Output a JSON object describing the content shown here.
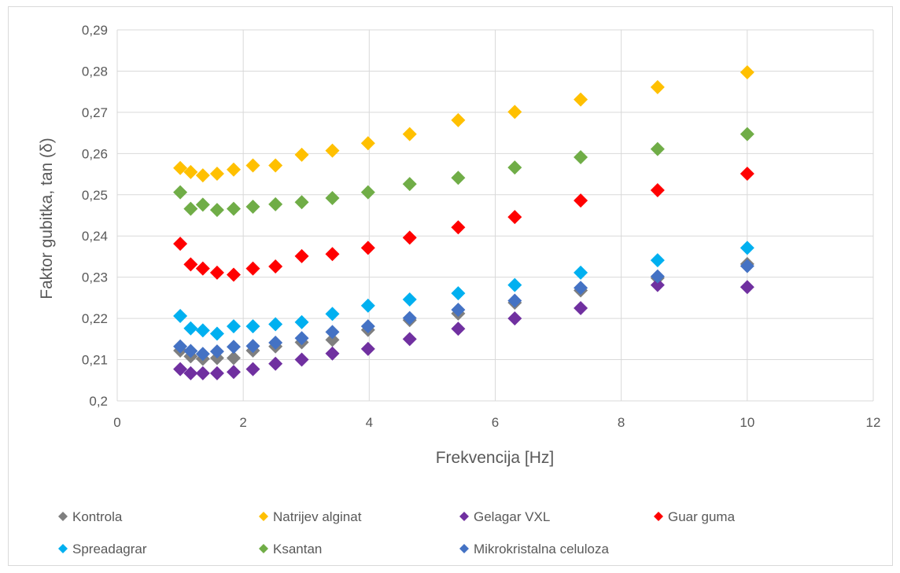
{
  "chart_data": {
    "type": "scatter",
    "xlabel": "Frekvencija [Hz]",
    "ylabel": "Faktor gubitka, tan (δ)",
    "xlim": [
      0,
      12
    ],
    "ylim": [
      0.2,
      0.29
    ],
    "x_ticks": [
      0,
      2,
      4,
      6,
      8,
      10,
      12
    ],
    "y_ticks": [
      0.2,
      0.21,
      0.22,
      0.23,
      0.24,
      0.25,
      0.26,
      0.27,
      0.28,
      0.29
    ],
    "x_tick_labels": [
      "0",
      "2",
      "4",
      "6",
      "8",
      "10",
      "12"
    ],
    "y_tick_labels": [
      "0,2",
      "0,21",
      "0,22",
      "0,23",
      "0,24",
      "0,25",
      "0,26",
      "0,27",
      "0,28",
      "0,29"
    ],
    "grid": true,
    "legend_position": "bottom",
    "x": [
      1.0,
      1.166,
      1.359,
      1.585,
      1.848,
      2.154,
      2.512,
      2.929,
      3.415,
      3.981,
      4.642,
      5.412,
      6.31,
      7.356,
      8.577,
      10.0
    ],
    "series": [
      {
        "name": "Kontrola",
        "color": "#7f7f7f",
        "values": [
          0.2122,
          0.2108,
          0.2102,
          0.2104,
          0.2104,
          0.2122,
          0.2132,
          0.2142,
          0.2148,
          0.2172,
          0.2196,
          0.2212,
          0.2238,
          0.2268,
          0.2298,
          0.2332
        ]
      },
      {
        "name": "Natrijev alginat",
        "color": "#ffc000",
        "values": [
          0.2565,
          0.2555,
          0.2547,
          0.2551,
          0.2561,
          0.2571,
          0.2571,
          0.2597,
          0.2607,
          0.2625,
          0.2647,
          0.2681,
          0.2701,
          0.2731,
          0.2761,
          0.2797
        ]
      },
      {
        "name": "Gelagar VXL",
        "color": "#7030a0",
        "values": [
          0.2077,
          0.2067,
          0.2067,
          0.2067,
          0.207,
          0.2077,
          0.209,
          0.21,
          0.2115,
          0.2126,
          0.215,
          0.2175,
          0.22,
          0.2225,
          0.2281,
          0.2276
        ]
      },
      {
        "name": "Guar guma",
        "color": "#ff0000",
        "values": [
          0.2381,
          0.2331,
          0.2321,
          0.2311,
          0.2306,
          0.2321,
          0.2326,
          0.2351,
          0.2356,
          0.2371,
          0.2396,
          0.2421,
          0.2446,
          0.2486,
          0.2511,
          0.2551
        ]
      },
      {
        "name": "Spreadagrar",
        "color": "#00b0f0",
        "values": [
          0.2206,
          0.2176,
          0.2171,
          0.2163,
          0.2181,
          0.2181,
          0.2186,
          0.2191,
          0.2211,
          0.2231,
          0.2246,
          0.2261,
          0.2281,
          0.2311,
          0.2341,
          0.2371
        ]
      },
      {
        "name": "Ksantan",
        "color": "#70ad47",
        "values": [
          0.2506,
          0.2466,
          0.2476,
          0.2463,
          0.2466,
          0.2471,
          0.2477,
          0.2482,
          0.2492,
          0.2506,
          0.2526,
          0.2541,
          0.2566,
          0.2591,
          0.2611,
          0.2647
        ]
      },
      {
        "name": "Mikrokristalna celuloza",
        "color": "#4472c4",
        "values": [
          0.2132,
          0.2121,
          0.2114,
          0.212,
          0.2131,
          0.2133,
          0.2141,
          0.2152,
          0.2167,
          0.2181,
          0.2201,
          0.2221,
          0.2243,
          0.2274,
          0.2302,
          0.2327
        ]
      }
    ]
  }
}
